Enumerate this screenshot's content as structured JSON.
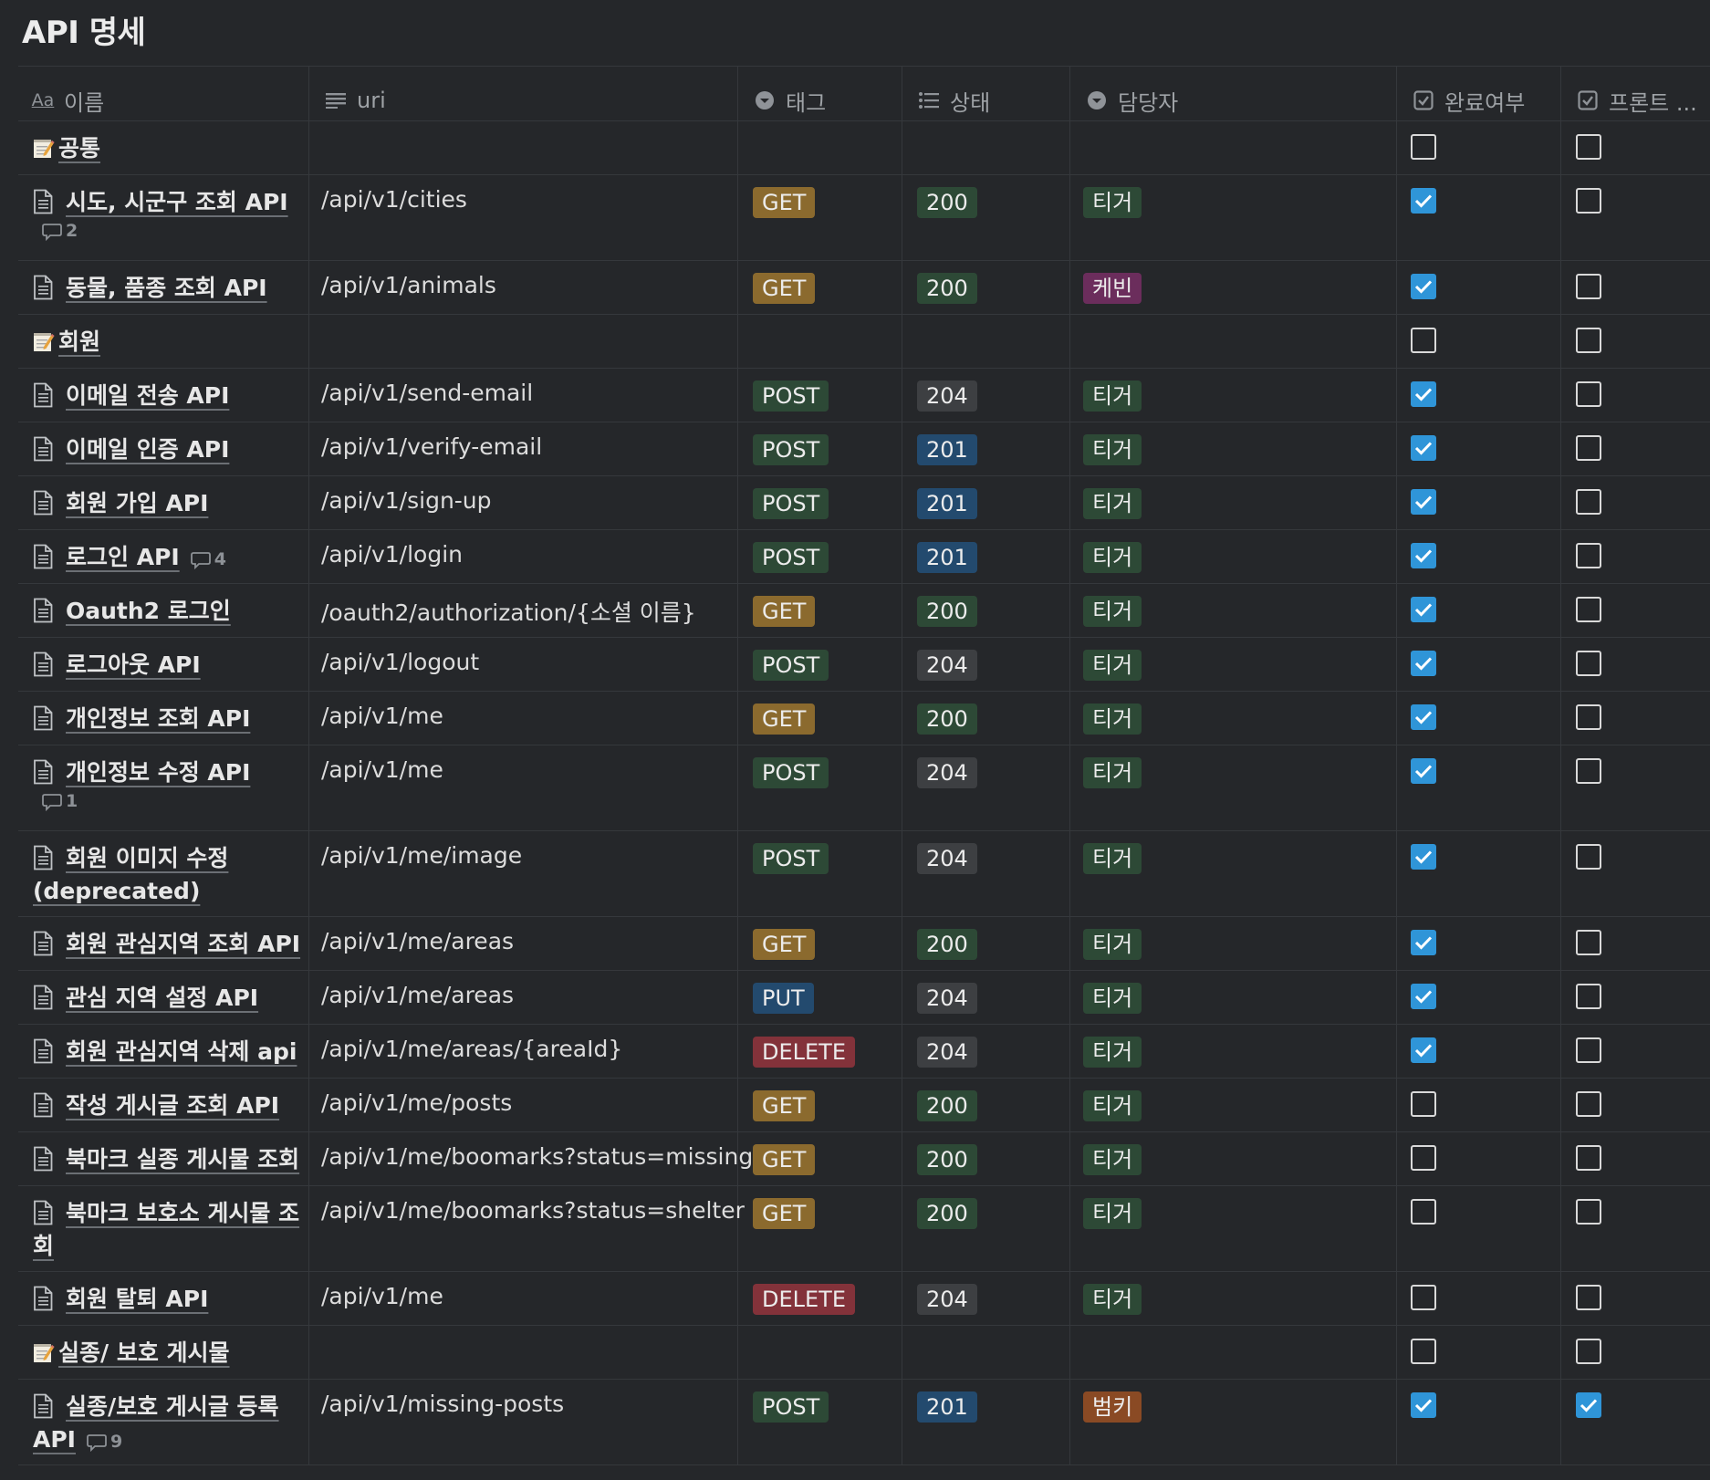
{
  "title": "API 명세",
  "columns": {
    "name": "이름",
    "name_icon": "Aa",
    "uri": "uri",
    "tag": "태그",
    "status": "상태",
    "owner": "담당자",
    "done": "완료여부",
    "front": "프론트 ..."
  },
  "icons": {
    "name": "text-type-icon",
    "uri": "lines-icon",
    "tag": "select-icon",
    "status": "list-icon",
    "owner": "select-icon",
    "done": "checkbox-icon",
    "front": "checkbox-icon",
    "section": "memo-icon",
    "page": "document-icon",
    "comment": "comment-icon"
  },
  "colors": {
    "GET": "#8b6a2e",
    "POST": "#2d4936",
    "PUT": "#234a6e",
    "DELETE": "#83323a",
    "200": "#2d4936",
    "204": "#3d3f42",
    "201": "#234a6e",
    "티거": "#2d4936",
    "케빈": "#6b2d5c",
    "범키": "#8a4a24",
    "checkbox_checked": "#2f95d8"
  },
  "rows": [
    {
      "type": "section",
      "name": "공통",
      "uri": "",
      "tag": "",
      "status": "",
      "owner": "",
      "done": false,
      "front": false
    },
    {
      "type": "page",
      "lines": [
        "시도, 시군구 조회 API"
      ],
      "comments": "2",
      "comment_style": "block",
      "uri": "/api/v1/cities",
      "tag": "GET",
      "status": "200",
      "owner": "티거",
      "done": true,
      "front": false
    },
    {
      "type": "page",
      "lines": [
        "동물, 품종 조회 API"
      ],
      "comments": "",
      "uri": "/api/v1/animals",
      "tag": "GET",
      "status": "200",
      "owner": "케빈",
      "done": true,
      "front": false
    },
    {
      "type": "section",
      "name": "회원",
      "uri": "",
      "tag": "",
      "status": "",
      "owner": "",
      "done": false,
      "front": false
    },
    {
      "type": "page",
      "lines": [
        "이메일 전송 API"
      ],
      "comments": "",
      "uri": "/api/v1/send-email",
      "tag": "POST",
      "status": "204",
      "owner": "티거",
      "done": true,
      "front": false
    },
    {
      "type": "page",
      "lines": [
        "이메일 인증 API"
      ],
      "comments": "",
      "uri": "/api/v1/verify-email",
      "tag": "POST",
      "status": "201",
      "owner": "티거",
      "done": true,
      "front": false
    },
    {
      "type": "page",
      "lines": [
        "회원 가입 API"
      ],
      "comments": "",
      "uri": "/api/v1/sign-up",
      "tag": "POST",
      "status": "201",
      "owner": "티거",
      "done": true,
      "front": false
    },
    {
      "type": "page",
      "lines": [
        "로그인 API"
      ],
      "comments": "4",
      "comment_style": "inline",
      "uri": "/api/v1/login",
      "tag": "POST",
      "status": "201",
      "owner": "티거",
      "done": true,
      "front": false
    },
    {
      "type": "page",
      "lines": [
        "Oauth2 로그인"
      ],
      "comments": "",
      "uri": "/oauth2/authorization/{소셜 이름}",
      "tag": "GET",
      "status": "200",
      "owner": "티거",
      "done": true,
      "front": false
    },
    {
      "type": "page",
      "lines": [
        "로그아웃 API"
      ],
      "comments": "",
      "uri": "/api/v1/logout",
      "tag": "POST",
      "status": "204",
      "owner": "티거",
      "done": true,
      "front": false
    },
    {
      "type": "page",
      "lines": [
        "개인정보 조회 API"
      ],
      "comments": "",
      "uri": "/api/v1/me",
      "tag": "GET",
      "status": "200",
      "owner": "티거",
      "done": true,
      "front": false
    },
    {
      "type": "page",
      "lines": [
        "개인정보 수정 API"
      ],
      "comments": "1",
      "comment_style": "block",
      "uri": "/api/v1/me",
      "tag": "POST",
      "status": "204",
      "owner": "티거",
      "done": true,
      "front": false
    },
    {
      "type": "page",
      "lines": [
        "회원 이미지 수정",
        "(deprecated)"
      ],
      "comments": "",
      "uri": "/api/v1/me/image",
      "tag": "POST",
      "status": "204",
      "owner": "티거",
      "done": true,
      "front": false
    },
    {
      "type": "page",
      "lines": [
        "회원 관심지역 조회 API"
      ],
      "comments": "",
      "uri": "/api/v1/me/areas",
      "tag": "GET",
      "status": "200",
      "owner": "티거",
      "done": true,
      "front": false
    },
    {
      "type": "page",
      "lines": [
        "관심 지역 설정 API"
      ],
      "comments": "",
      "uri": "/api/v1/me/areas",
      "tag": "PUT",
      "status": "204",
      "owner": "티거",
      "done": true,
      "front": false
    },
    {
      "type": "page",
      "lines": [
        "회원 관심지역 삭제 api"
      ],
      "comments": "",
      "uri": "/api/v1/me/areas/{areaId}",
      "tag": "DELETE",
      "status": "204",
      "owner": "티거",
      "done": true,
      "front": false
    },
    {
      "type": "page",
      "lines": [
        "작성 게시글 조회 API"
      ],
      "comments": "",
      "uri": "/api/v1/me/posts",
      "tag": "GET",
      "status": "200",
      "owner": "티거",
      "done": false,
      "front": false
    },
    {
      "type": "page",
      "lines": [
        "북마크 실종 게시물 조회"
      ],
      "comments": "",
      "uri": "/api/v1/me/boomarks?status=missing",
      "tag": "GET",
      "status": "200",
      "owner": "티거",
      "done": false,
      "front": false
    },
    {
      "type": "page",
      "lines": [
        "북마크 보호소 게시물 조",
        "회"
      ],
      "comments": "",
      "uri": "/api/v1/me/boomarks?status=shelter",
      "tag": "GET",
      "status": "200",
      "owner": "티거",
      "done": false,
      "front": false
    },
    {
      "type": "page",
      "lines": [
        "회원 탈퇴 API"
      ],
      "comments": "",
      "uri": "/api/v1/me",
      "tag": "DELETE",
      "status": "204",
      "owner": "티거",
      "done": false,
      "front": false
    },
    {
      "type": "section",
      "name": "실종/ 보호 게시물",
      "uri": "",
      "tag": "",
      "status": "",
      "owner": "",
      "done": false,
      "front": false
    },
    {
      "type": "page",
      "lines": [
        "실종/보호 게시글 등록",
        "API"
      ],
      "comments": "9",
      "comment_style": "inline",
      "uri": "/api/v1/missing-posts",
      "tag": "POST",
      "status": "201",
      "owner": "범키",
      "done": true,
      "front": true
    }
  ]
}
